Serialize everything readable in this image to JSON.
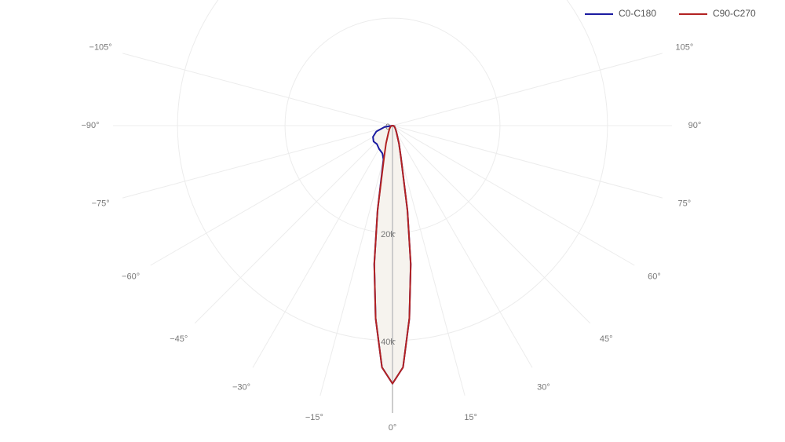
{
  "chart_data": {
    "type": "polar",
    "x": [
      -90,
      -80,
      -70,
      -60,
      -50,
      -40,
      -30,
      -20,
      -15,
      -10,
      -7.5,
      -5,
      -2.5,
      0,
      2.5,
      5,
      7.5,
      10,
      15,
      20,
      30,
      40,
      50,
      60,
      70,
      80,
      90
    ],
    "series": [
      {
        "name": "C0-C180",
        "color": "#1a1aa0",
        "values": [
          0,
          1500,
          3200,
          4200,
          4600,
          4500,
          5000,
          5500,
          6500,
          16000,
          26000,
          36000,
          45000,
          48000,
          45000,
          36000,
          26000,
          16000,
          6000,
          3500,
          1500,
          900,
          600,
          400,
          300,
          200,
          0
        ]
      },
      {
        "name": "C90-C270",
        "color": "#b22222",
        "values": [
          0,
          200,
          300,
          400,
          600,
          900,
          1500,
          3500,
          6000,
          16000,
          26000,
          36000,
          45000,
          48000,
          45000,
          36000,
          26000,
          16000,
          6000,
          3500,
          1500,
          900,
          600,
          400,
          300,
          200,
          0
        ]
      }
    ],
    "fill_color": "#f6f3ee",
    "rlim": [
      0,
      52000
    ],
    "rticks": [
      0,
      {
        "value": 20000,
        "label": "20k"
      },
      {
        "value": 40000,
        "label": "40k"
      }
    ],
    "angleticks": [
      {
        "value": -105,
        "label": "−105°"
      },
      {
        "value": -90,
        "label": "−90°"
      },
      {
        "value": -75,
        "label": "−75°"
      },
      {
        "value": -60,
        "label": "−60°"
      },
      {
        "value": -45,
        "label": "−45°"
      },
      {
        "value": -30,
        "label": "−30°"
      },
      {
        "value": -15,
        "label": "−15°"
      },
      {
        "value": 0,
        "label": "0°"
      },
      {
        "value": 15,
        "label": "15°"
      },
      {
        "value": 30,
        "label": "30°"
      },
      {
        "value": 45,
        "label": "45°"
      },
      {
        "value": 60,
        "label": "60°"
      },
      {
        "value": 75,
        "label": "75°"
      },
      {
        "value": 90,
        "label": "90°"
      },
      {
        "value": 105,
        "label": "105°"
      }
    ],
    "grid": true,
    "legend": "top-right"
  }
}
